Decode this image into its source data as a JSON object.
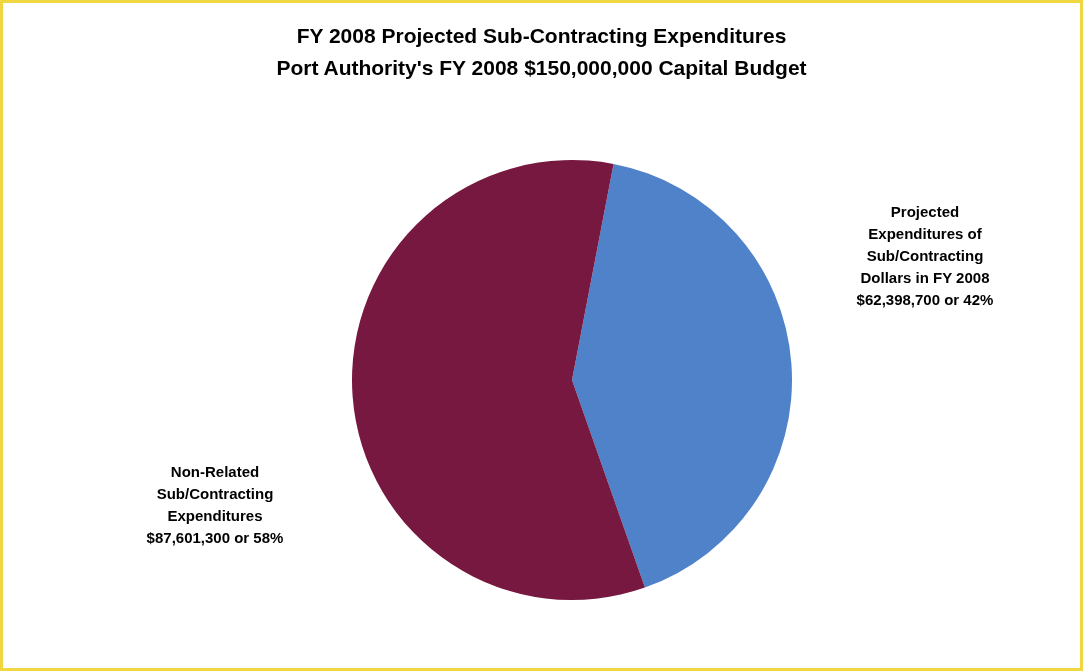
{
  "chart_data": {
    "type": "pie",
    "title": "FY 2008 Projected Sub-Contracting Expenditures\nPort Authority's FY 2008 $150,000,000 Capital Budget",
    "categories": [
      "Projected\nExpenditures of\nSub/Contracting\nDollars in FY 2008",
      "Non-Related\nSub/Contracting\nExpenditures"
    ],
    "values": [
      62398700,
      87601300
    ],
    "value_labels": [
      "$62,398,700 or 42%",
      "$87,601,300 or 58%"
    ],
    "colors": [
      "#4f82c8",
      "#761840"
    ]
  }
}
